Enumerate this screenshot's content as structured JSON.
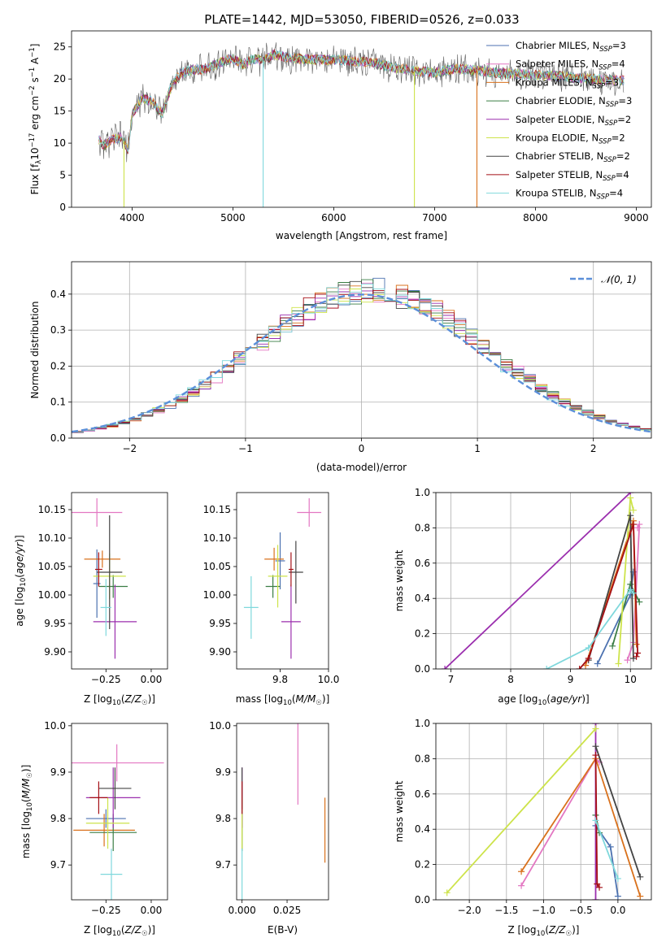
{
  "figure": {
    "title": "PLATE=1442, MJD=53050, FIBERID=0526, z=0.033"
  },
  "models": [
    {
      "name": "Chabrier MILES",
      "nssp": 3,
      "color": "#4c72b0"
    },
    {
      "name": "Salpeter MILES",
      "nssp": 4,
      "color": "#e377c2"
    },
    {
      "name": "Kroupa MILES",
      "nssp": 3,
      "color": "#d9711c"
    },
    {
      "name": "Chabrier ELODIE",
      "nssp": 3,
      "color": "#3a7d44"
    },
    {
      "name": "Salpeter ELODIE",
      "nssp": 2,
      "color": "#9b2fae"
    },
    {
      "name": "Kroupa ELODIE",
      "nssp": 2,
      "color": "#cde34a"
    },
    {
      "name": "Chabrier STELIB",
      "nssp": 2,
      "color": "#444444"
    },
    {
      "name": "Salpeter STELIB",
      "nssp": 4,
      "color": "#a50f15"
    },
    {
      "name": "Kroupa STELIB",
      "nssp": 4,
      "color": "#7fd8dc"
    }
  ],
  "chart_data": [
    {
      "id": "spectrum",
      "type": "line",
      "xlabel": "wavelength [Angstrom, rest frame]",
      "ylabel": "Flux [f_λ 10^-17 erg cm^-2 s^-1 A^-1]",
      "xlim": [
        3400,
        9150
      ],
      "ylim": [
        0,
        27.5
      ],
      "xticks": [
        4000,
        5000,
        6000,
        7000,
        8000,
        9000
      ],
      "yticks": [
        0,
        5,
        10,
        15,
        20,
        25
      ],
      "legend_position": "top-right",
      "continuum": {
        "x": [
          3680,
          3720,
          3800,
          3900,
          3960,
          4000,
          4100,
          4200,
          4300,
          4400,
          4500,
          4600,
          4700,
          4800,
          4900,
          5000,
          5100,
          5200,
          5300,
          5400,
          5600,
          5800,
          6000,
          6200,
          6400,
          6600,
          6800,
          7000,
          7200,
          7400,
          7600,
          7800,
          8000,
          8200,
          8400,
          8600,
          8800
        ],
        "y": [
          10.5,
          9.5,
          10.5,
          11.0,
          9.0,
          14.5,
          17.0,
          16.5,
          14.5,
          19.5,
          21.0,
          21.5,
          21.5,
          22.0,
          22.8,
          23.2,
          22.2,
          23.2,
          22.8,
          23.8,
          23.2,
          23.0,
          23.0,
          22.8,
          22.5,
          21.8,
          21.2,
          21.0,
          21.6,
          21.4,
          21.0,
          20.8,
          20.6,
          20.5,
          20.2,
          20.0,
          19.8
        ]
      },
      "dips": [
        {
          "x": 3920,
          "y": 0
        },
        {
          "x": 5300,
          "y": 0
        },
        {
          "x": 6800,
          "y": 0
        },
        {
          "x": 7420,
          "y": 0
        }
      ]
    },
    {
      "id": "residuals",
      "type": "area",
      "xlabel": "(data-model)/error",
      "ylabel": "Normed distribution",
      "xlim": [
        -2.5,
        2.5
      ],
      "ylim": [
        0,
        0.49
      ],
      "xticks": [
        -2,
        -1,
        0,
        1,
        2
      ],
      "yticks": [
        0.0,
        0.1,
        0.2,
        0.3,
        0.4
      ],
      "grid": true,
      "bin_width": 0.1,
      "bin_start": -2.5,
      "legend_position": "top-right",
      "reference_curve": {
        "name": "𝒩(0, 1)",
        "type": "normal",
        "mean": 0,
        "sd": 1,
        "color": "#5b8fd9"
      }
    },
    {
      "id": "age-vs-Z",
      "type": "scatter",
      "xlabel": "Z [log₁₀(Z/Z☉)]",
      "ylabel": "age  [log₁₀(age/yr)]",
      "xlim": [
        -0.44,
        0.09
      ],
      "ylim": [
        9.87,
        10.18
      ],
      "xticks": [
        -0.25,
        0.0
      ],
      "yticks": [
        9.9,
        9.95,
        10.0,
        10.05,
        10.1,
        10.15
      ],
      "points": [
        {
          "model": 0,
          "x": -0.3,
          "y": 10.02,
          "xerr": 0.02,
          "yerr": 0.06
        },
        {
          "model": 1,
          "x": -0.3,
          "y": 10.145,
          "xerr": 0.14,
          "yerr": 0.025
        },
        {
          "model": 2,
          "x": -0.27,
          "y": 10.063,
          "xerr": 0.1,
          "yerr": 0.015
        },
        {
          "model": 3,
          "x": -0.21,
          "y": 10.015,
          "xerr": 0.08,
          "yerr": 0.02
        },
        {
          "model": 4,
          "x": -0.2,
          "y": 9.953,
          "xerr": 0.12,
          "yerr": 0.065
        },
        {
          "model": 5,
          "x": -0.23,
          "y": 10.033,
          "xerr": 0.09,
          "yerr": 0.04
        },
        {
          "model": 6,
          "x": -0.23,
          "y": 10.04,
          "xerr": 0.07,
          "yerr": 0.1
        },
        {
          "model": 7,
          "x": -0.29,
          "y": 10.045,
          "xerr": 0.02,
          "yerr": 0.03
        },
        {
          "model": 8,
          "x": -0.25,
          "y": 9.978,
          "xerr": 0.03,
          "yerr": 0.05
        }
      ]
    },
    {
      "id": "age-vs-mass",
      "type": "scatter",
      "xlabel": "mass [log₁₀(M/M☉)]",
      "ylabel": "",
      "xlim": [
        9.62,
        10.0
      ],
      "ylim": [
        9.87,
        10.18
      ],
      "xticks": [
        9.8,
        10.0
      ],
      "yticks": [
        9.9,
        9.95,
        10.0,
        10.05,
        10.1,
        10.15
      ],
      "points": [
        {
          "model": 0,
          "x": 9.8,
          "y": 10.06,
          "xerr": 0.02,
          "yerr": 0.05
        },
        {
          "model": 1,
          "x": 9.92,
          "y": 10.145,
          "xerr": 0.05,
          "yerr": 0.025
        },
        {
          "model": 2,
          "x": 9.775,
          "y": 10.063,
          "xerr": 0.04,
          "yerr": 0.02
        },
        {
          "model": 3,
          "x": 9.77,
          "y": 10.015,
          "xerr": 0.03,
          "yerr": 0.02
        },
        {
          "model": 4,
          "x": 9.845,
          "y": 9.953,
          "xerr": 0.04,
          "yerr": 0.065
        },
        {
          "model": 5,
          "x": 9.79,
          "y": 10.033,
          "xerr": 0.04,
          "yerr": 0.055
        },
        {
          "model": 6,
          "x": 9.865,
          "y": 10.04,
          "xerr": 0.03,
          "yerr": 0.055
        },
        {
          "model": 7,
          "x": 9.845,
          "y": 10.045,
          "xerr": 0.01,
          "yerr": 0.03
        },
        {
          "model": 8,
          "x": 9.68,
          "y": 9.978,
          "xerr": 0.03,
          "yerr": 0.055
        }
      ]
    },
    {
      "id": "massweight-vs-age",
      "type": "line",
      "xlabel": "age  [log₁₀(age/yr)]",
      "ylabel": "mass weight",
      "xlim": [
        6.75,
        10.35
      ],
      "ylim": [
        0,
        1
      ],
      "xticks": [
        7,
        8,
        9,
        10
      ],
      "yticks": [
        0.0,
        0.2,
        0.4,
        0.6,
        0.8,
        1.0
      ],
      "grid": true,
      "series": [
        {
          "model": 0,
          "x": [
            9.45,
            10.0,
            10.05
          ],
          "y": [
            0.03,
            0.42,
            0.55
          ]
        },
        {
          "model": 1,
          "x": [
            9.95,
            10.05,
            10.15,
            10.12
          ],
          "y": [
            0.05,
            0.15,
            0.82,
            0.8
          ]
        },
        {
          "model": 2,
          "x": [
            9.25,
            10.05,
            10.1
          ],
          "y": [
            0.02,
            0.84,
            0.14
          ]
        },
        {
          "model": 3,
          "x": [
            9.7,
            10.0,
            10.15
          ],
          "y": [
            0.13,
            0.48,
            0.38
          ]
        },
        {
          "model": 4,
          "x": [
            6.9,
            10.0
          ],
          "y": [
            0.0,
            1.0
          ]
        },
        {
          "model": 5,
          "x": [
            9.8,
            10.0,
            10.05
          ],
          "y": [
            0.03,
            0.97,
            0.9
          ]
        },
        {
          "model": 6,
          "x": [
            9.3,
            10.0,
            10.05
          ],
          "y": [
            0.05,
            0.87,
            0.06
          ]
        },
        {
          "model": 7,
          "x": [
            9.15,
            9.3,
            10.05,
            10.12,
            10.1
          ],
          "y": [
            0.0,
            0.06,
            0.82,
            0.09,
            0.07
          ]
        },
        {
          "model": 8,
          "x": [
            8.6,
            9.3,
            10.0,
            10.05
          ],
          "y": [
            0.0,
            0.12,
            0.45,
            0.43
          ]
        }
      ]
    },
    {
      "id": "mass-vs-Z",
      "type": "scatter",
      "xlabel": "Z [log₁₀(Z/Z☉)]",
      "ylabel": "mass [log₁₀(M/M☉)]",
      "xlim": [
        -0.44,
        0.09
      ],
      "ylim": [
        9.625,
        10.005
      ],
      "xticks": [
        -0.25,
        0.0
      ],
      "yticks": [
        9.7,
        9.8,
        9.9,
        10.0
      ],
      "points": [
        {
          "model": 0,
          "x": -0.25,
          "y": 9.8,
          "xerr": 0.11,
          "yerr": 0.02
        },
        {
          "model": 1,
          "x": -0.19,
          "y": 9.92,
          "xerr": 0.26,
          "yerr": 0.04
        },
        {
          "model": 2,
          "x": -0.26,
          "y": 9.775,
          "xerr": 0.17,
          "yerr": 0.035
        },
        {
          "model": 3,
          "x": -0.21,
          "y": 9.77,
          "xerr": 0.13,
          "yerr": 0.04
        },
        {
          "model": 4,
          "x": -0.21,
          "y": 9.845,
          "xerr": 0.15,
          "yerr": 0.065
        },
        {
          "model": 5,
          "x": -0.24,
          "y": 9.79,
          "xerr": 0.12,
          "yerr": 0.055
        },
        {
          "model": 6,
          "x": -0.2,
          "y": 9.865,
          "xerr": 0.09,
          "yerr": 0.045
        },
        {
          "model": 7,
          "x": -0.29,
          "y": 9.845,
          "xerr": 0.05,
          "yerr": 0.035
        },
        {
          "model": 8,
          "x": -0.22,
          "y": 9.68,
          "xerr": 0.06,
          "yerr": 0.055
        }
      ]
    },
    {
      "id": "mass-vs-EBV",
      "type": "scatter",
      "xlabel": "E(B-V)",
      "ylabel": "",
      "xlim": [
        -0.003,
        0.048
      ],
      "ylim": [
        9.625,
        10.005
      ],
      "xticks": [
        0.0,
        0.025
      ],
      "yticks": [
        9.7,
        9.8,
        9.9,
        10.0
      ],
      "points": [
        {
          "model": 0,
          "x": 0.0,
          "y": 9.8,
          "yerr": 0.02
        },
        {
          "model": 1,
          "x": 0.031,
          "y": 9.92,
          "yerr": 0.09
        },
        {
          "model": 2,
          "x": 0.046,
          "y": 9.775,
          "yerr": 0.07
        },
        {
          "model": 3,
          "x": 0.0,
          "y": 9.77,
          "yerr": 0.04
        },
        {
          "model": 4,
          "x": 0.0,
          "y": 9.845,
          "yerr": 0.065
        },
        {
          "model": 5,
          "x": 0.0,
          "y": 9.79,
          "yerr": 0.055
        },
        {
          "model": 6,
          "x": 0.0,
          "y": 9.865,
          "yerr": 0.045
        },
        {
          "model": 7,
          "x": 0.0,
          "y": 9.845,
          "yerr": 0.035
        },
        {
          "model": 8,
          "x": 0.0,
          "y": 9.68,
          "yerr": 0.055
        }
      ]
    },
    {
      "id": "massweight-vs-Z",
      "type": "line",
      "xlabel": "Z [log₁₀(Z/Z☉)]",
      "ylabel": "mass weight",
      "xlim": [
        -2.45,
        0.45
      ],
      "ylim": [
        0,
        1
      ],
      "xticks": [
        -2.0,
        -1.5,
        -1.0,
        -0.5,
        0.0
      ],
      "yticks": [
        0.0,
        0.2,
        0.4,
        0.6,
        0.8,
        1.0
      ],
      "grid": true,
      "series": [
        {
          "model": 0,
          "x": [
            -0.3,
            -0.1,
            0.0
          ],
          "y": [
            0.42,
            0.3,
            0.02
          ]
        },
        {
          "model": 1,
          "x": [
            -1.3,
            -0.3,
            -0.25
          ],
          "y": [
            0.08,
            0.8,
            0.78
          ]
        },
        {
          "model": 2,
          "x": [
            -1.3,
            -0.3,
            0.3
          ],
          "y": [
            0.16,
            0.8,
            0.02
          ]
        },
        {
          "model": 3,
          "x": [
            -0.3,
            -0.25
          ],
          "y": [
            0.48,
            0.38
          ]
        },
        {
          "model": 4,
          "x": [
            -0.3,
            -0.3
          ],
          "y": [
            1.0,
            0.0
          ]
        },
        {
          "model": 5,
          "x": [
            -2.3,
            -0.3
          ],
          "y": [
            0.04,
            0.97
          ]
        },
        {
          "model": 6,
          "x": [
            -0.3,
            0.3
          ],
          "y": [
            0.87,
            0.13
          ]
        },
        {
          "model": 7,
          "x": [
            -0.3,
            -0.28,
            -0.25
          ],
          "y": [
            0.82,
            0.09,
            0.07
          ]
        },
        {
          "model": 8,
          "x": [
            -0.3,
            0.0
          ],
          "y": [
            0.45,
            0.12
          ]
        }
      ]
    }
  ]
}
